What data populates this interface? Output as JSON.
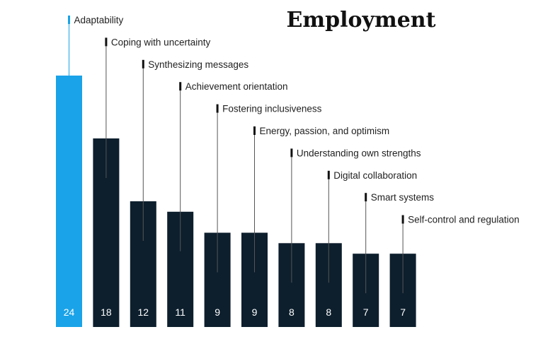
{
  "chart_data": {
    "type": "bar",
    "title": "Employment",
    "categories": [
      "Adaptability",
      "Coping with uncertainty",
      "Synthesizing messages",
      "Achievement orientation",
      "Fostering inclusiveness",
      "Energy, passion, and optimism",
      "Understanding own strengths",
      "Digital collaboration",
      "Smart systems",
      "Self-control and regulation"
    ],
    "values": [
      24,
      18,
      12,
      11,
      9,
      9,
      8,
      8,
      7,
      7
    ],
    "highlight_index": 0,
    "colors": {
      "highlight": "#1aa3e8",
      "default": "#0d1f2d",
      "leader_highlight": "#1aa3e8",
      "leader_default": "#111111"
    },
    "ylim": [
      0,
      25
    ],
    "grid": false,
    "legend": "none"
  }
}
